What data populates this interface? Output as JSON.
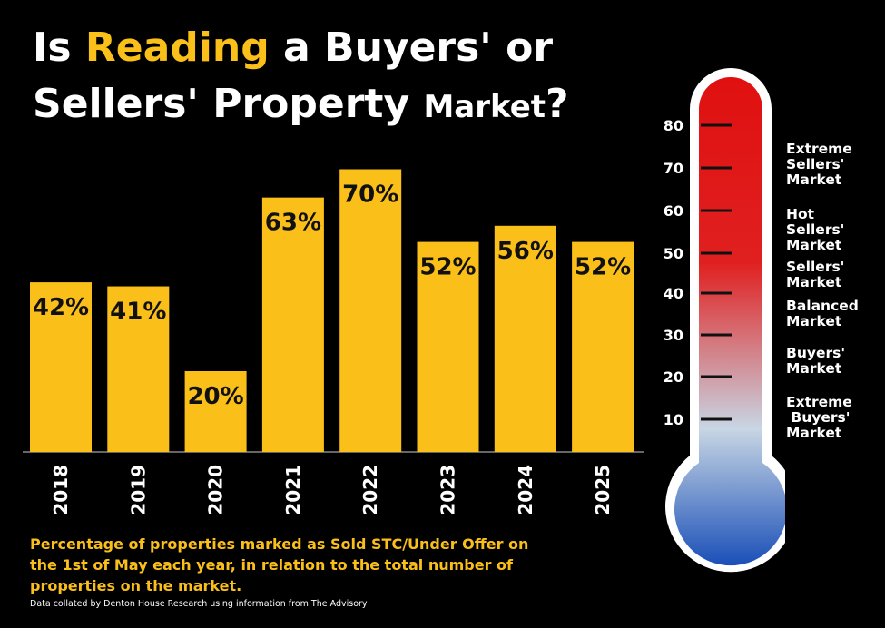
{
  "title": {
    "part1": "Is ",
    "highlight": "Reading",
    "part2": " a Buyers' or",
    "part3": "Sellers' Property ",
    "part4": "Market",
    "part5": "?"
  },
  "chart_data": {
    "type": "bar",
    "title": "Is Reading a Buyers' or Sellers' Property Market?",
    "categories": [
      "2018",
      "2019",
      "2020",
      "2021",
      "2022",
      "2023",
      "2024",
      "2025"
    ],
    "values": [
      42,
      41,
      20,
      63,
      70,
      52,
      56,
      52
    ],
    "value_labels": [
      "42%",
      "41%",
      "20%",
      "63%",
      "70%",
      "52%",
      "56%",
      "52%"
    ],
    "ylim": [
      0,
      80
    ],
    "grid": false,
    "xlabel": "",
    "ylabel": "",
    "bar_color": "#fbbf1a"
  },
  "caption": "Percentage of properties marked as Sold STC/Under Offer on the 1st of May each year, in relation to the total number of properties on the market.",
  "source": "Data collated by Denton House Research using information from The Advisory",
  "thermometer": {
    "ticks": [
      "80",
      "70",
      "60",
      "50",
      "40",
      "30",
      "20",
      "10"
    ],
    "zones": [
      "Extreme\nSellers'\nMarket",
      "Hot\nSellers'\nMarket",
      "Sellers'\nMarket",
      "Balanced\nMarket",
      "Buyers'\nMarket",
      "Extreme\n Buyers'\nMarket"
    ],
    "colors": {
      "top": "#e01010",
      "middle": "#c8d6e4",
      "bottom": "#1a4fb8"
    }
  }
}
